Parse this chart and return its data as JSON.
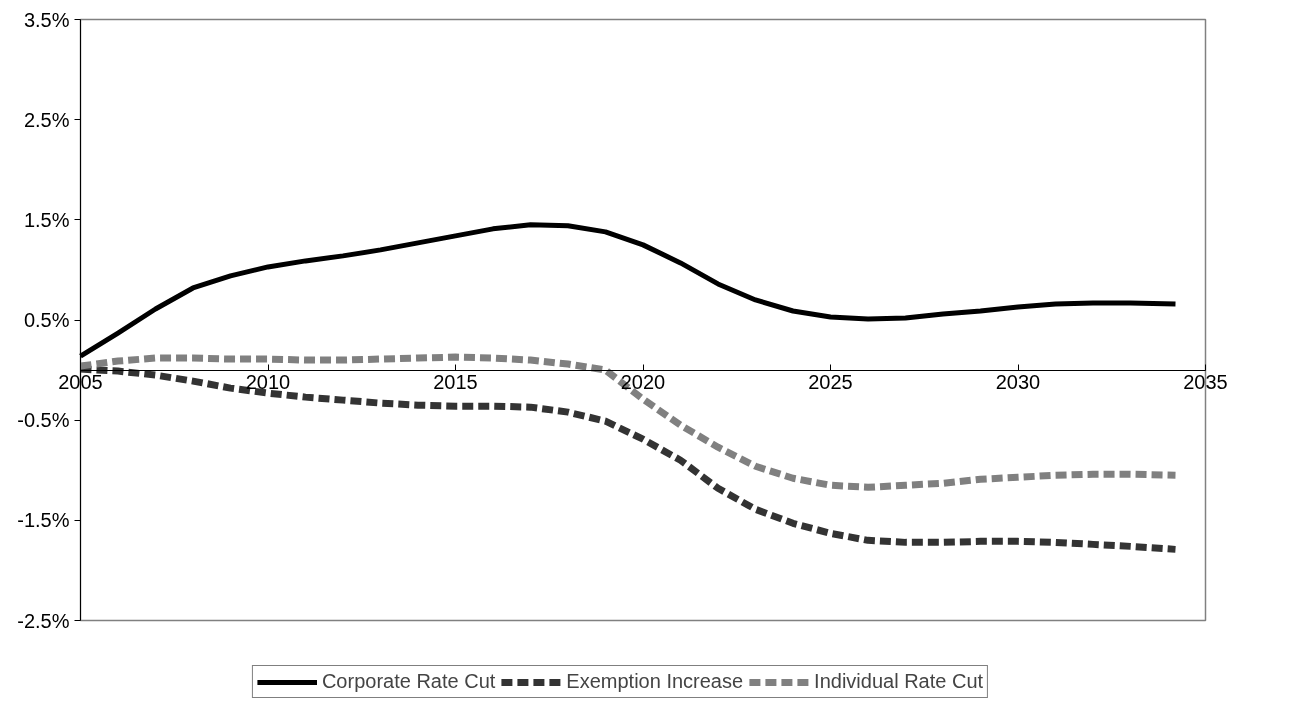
{
  "chart_data": {
    "type": "line",
    "x": [
      2005,
      2006,
      2007,
      2008,
      2009,
      2010,
      2011,
      2012,
      2013,
      2014,
      2015,
      2016,
      2017,
      2018,
      2019,
      2020,
      2021,
      2022,
      2023,
      2024,
      2025,
      2026,
      2027,
      2028,
      2029,
      2030,
      2031,
      2032,
      2033,
      2034.2
    ],
    "series": [
      {
        "name": "Corporate Rate Cut",
        "color": "#000000",
        "line_style": "solid",
        "values": [
          0.14,
          0.37,
          0.61,
          0.82,
          0.94,
          1.03,
          1.09,
          1.14,
          1.2,
          1.27,
          1.34,
          1.41,
          1.45,
          1.44,
          1.38,
          1.25,
          1.07,
          0.86,
          0.7,
          0.59,
          0.53,
          0.51,
          0.52,
          0.56,
          0.59,
          0.63,
          0.66,
          0.67,
          0.67,
          0.66
        ]
      },
      {
        "name": "Exemption Increase",
        "color": "#333333",
        "line_style": "dashed",
        "values": [
          0.01,
          -0.01,
          -0.05,
          -0.11,
          -0.18,
          -0.23,
          -0.27,
          -0.3,
          -0.33,
          -0.35,
          -0.36,
          -0.36,
          -0.37,
          -0.42,
          -0.51,
          -0.69,
          -0.9,
          -1.18,
          -1.39,
          -1.53,
          -1.63,
          -1.7,
          -1.72,
          -1.72,
          -1.71,
          -1.71,
          -1.72,
          -1.74,
          -1.76,
          -1.79
        ]
      },
      {
        "name": "Individual Rate Cut",
        "color": "#808080",
        "line_style": "dashed",
        "values": [
          0.04,
          0.09,
          0.12,
          0.12,
          0.11,
          0.11,
          0.1,
          0.1,
          0.11,
          0.12,
          0.13,
          0.12,
          0.1,
          0.06,
          0.0,
          -0.29,
          -0.55,
          -0.77,
          -0.96,
          -1.08,
          -1.15,
          -1.17,
          -1.15,
          -1.13,
          -1.09,
          -1.07,
          -1.05,
          -1.04,
          -1.04,
          -1.05
        ]
      }
    ],
    "xlim": [
      2005,
      2035
    ],
    "xticks": [
      2005,
      2010,
      2015,
      2020,
      2025,
      2030,
      2035
    ],
    "ylim": [
      -2.5,
      3.5
    ],
    "yticks": [
      {
        "value": 3.5,
        "label": "3.5%"
      },
      {
        "value": 2.5,
        "label": "2.5%"
      },
      {
        "value": 1.5,
        "label": "1.5%"
      },
      {
        "value": 0.5,
        "label": "0.5%"
      },
      {
        "value": -0.5,
        "label": "-0.5%"
      },
      {
        "value": -1.5,
        "label": "-1.5%"
      },
      {
        "value": -2.5,
        "label": "-2.5%"
      }
    ],
    "grid": false,
    "legend": "bottom",
    "marker": "none"
  }
}
